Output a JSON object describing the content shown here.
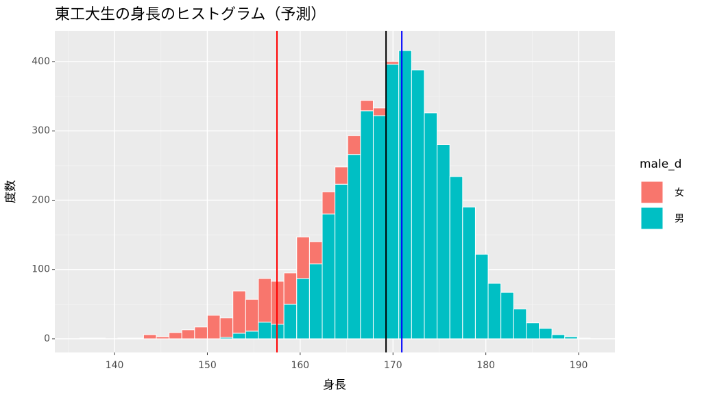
{
  "chart_data": {
    "type": "histogram",
    "title": "東工大生の身長のヒストグラム（予測）",
    "xlabel": "身長",
    "ylabel": "度数",
    "legend_title": "male_d",
    "legend": "right",
    "bins": [
      136.25,
      137.625,
      139,
      140.375,
      141.75,
      143.125,
      144.5,
      145.875,
      147.25,
      148.625,
      150,
      151.375,
      152.75,
      154.125,
      155.5,
      156.875,
      158.25,
      159.625,
      161,
      162.375,
      163.75,
      165.125,
      166.5,
      167.875,
      169.25,
      170.625,
      172,
      173.375,
      174.75,
      176.125,
      177.5,
      178.875,
      180.25,
      181.625,
      183,
      184.375,
      185.75,
      187.125,
      188.5,
      189.875,
      191.25
    ],
    "series": [
      {
        "name": "女",
        "color": "#f8766d",
        "values": [
          1,
          1,
          0,
          1,
          1,
          6,
          3,
          9,
          13,
          17,
          34,
          28,
          61,
          46,
          63,
          62,
          45,
          60,
          32,
          32,
          25,
          27,
          15,
          11,
          4,
          0,
          0,
          0,
          0,
          0,
          0,
          0,
          0,
          0,
          0,
          0,
          0,
          0,
          0,
          0
        ]
      },
      {
        "name": "男",
        "color": "#00bfc4",
        "values": [
          0,
          0,
          0,
          0,
          0,
          0,
          0,
          0,
          0,
          0,
          0,
          2,
          8,
          11,
          24,
          21,
          50,
          87,
          108,
          180,
          223,
          266,
          329,
          322,
          396,
          416,
          388,
          326,
          280,
          234,
          190,
          122,
          80,
          67,
          43,
          23,
          15,
          6,
          3,
          1
        ]
      }
    ],
    "vlines": [
      {
        "value": 157.5,
        "color": "#ff0000"
      },
      {
        "value": 169.25,
        "color": "#000000"
      },
      {
        "value": 170.95,
        "color": "#0000ff"
      }
    ],
    "xlim": [
      133.57,
      193.91
    ],
    "ylim": [
      -19.75,
      444.4
    ],
    "xticks": [
      140,
      150,
      160,
      170,
      180,
      190
    ],
    "yticks": [
      0,
      100,
      200,
      300,
      400
    ],
    "grid": true
  }
}
